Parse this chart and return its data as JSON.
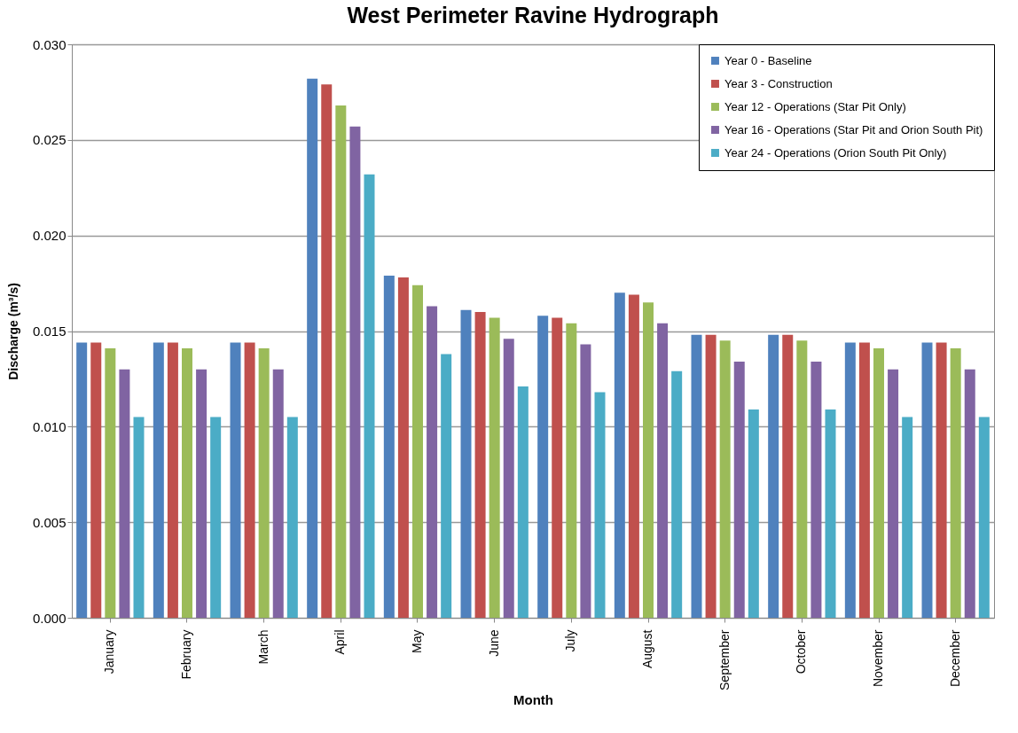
{
  "chart_data": {
    "type": "bar",
    "title": "West Perimeter Ravine Hydrograph",
    "xlabel": "Month",
    "ylabel": "Discharge (m³/s)",
    "categories": [
      "January",
      "February",
      "March",
      "April",
      "May",
      "June",
      "July",
      "August",
      "September",
      "October",
      "November",
      "December"
    ],
    "series": [
      {
        "name": "Year 0 - Baseline",
        "color": "#4f81bd",
        "values": [
          0.0144,
          0.0144,
          0.0144,
          0.0282,
          0.0179,
          0.0161,
          0.0158,
          0.017,
          0.0148,
          0.0148,
          0.0144,
          0.0144
        ]
      },
      {
        "name": "Year 3 - Construction",
        "color": "#c0504d",
        "values": [
          0.0144,
          0.0144,
          0.0144,
          0.0279,
          0.0178,
          0.016,
          0.0157,
          0.0169,
          0.0148,
          0.0148,
          0.0144,
          0.0144
        ]
      },
      {
        "name": "Year 12 - Operations (Star Pit Only)",
        "color": "#9bbb59",
        "values": [
          0.0141,
          0.0141,
          0.0141,
          0.0268,
          0.0174,
          0.0157,
          0.0154,
          0.0165,
          0.0145,
          0.0145,
          0.0141,
          0.0141
        ]
      },
      {
        "name": "Year 16 - Operations (Star Pit and Orion South Pit)",
        "color": "#8064a2",
        "values": [
          0.013,
          0.013,
          0.013,
          0.0257,
          0.0163,
          0.0146,
          0.0143,
          0.0154,
          0.0134,
          0.0134,
          0.013,
          0.013
        ]
      },
      {
        "name": "Year 24 - Operations (Orion South Pit Only)",
        "color": "#4bacc6",
        "values": [
          0.0105,
          0.0105,
          0.0105,
          0.0232,
          0.0138,
          0.0121,
          0.0118,
          0.0129,
          0.0109,
          0.0109,
          0.0105,
          0.0105
        ]
      }
    ],
    "ylim": [
      0,
      0.03
    ],
    "yticks": [
      {
        "value": 0,
        "label": "0.000"
      },
      {
        "value": 0.005,
        "label": "0.005"
      },
      {
        "value": 0.01,
        "label": "0.010"
      },
      {
        "value": 0.015,
        "label": "0.015"
      },
      {
        "value": 0.02,
        "label": "0.020"
      },
      {
        "value": 0.025,
        "label": "0.025"
      },
      {
        "value": 0.03,
        "label": "0.030"
      }
    ],
    "grid": "y",
    "legend": "top right"
  }
}
